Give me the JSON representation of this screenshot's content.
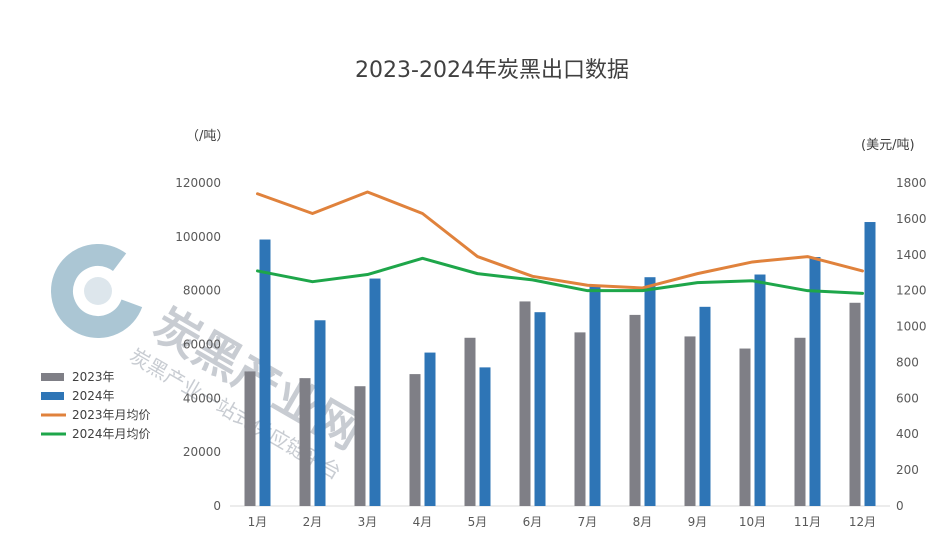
{
  "chart_data": {
    "type": "bar",
    "title": "2023-2024年炭黑出口数据",
    "categories": [
      "1月",
      "2月",
      "3月",
      "4月",
      "5月",
      "6月",
      "7月",
      "8月",
      "9月",
      "10月",
      "11月",
      "12月"
    ],
    "left_axis": {
      "label": "（/吨）",
      "min": 0,
      "max": 120000,
      "step": 20000,
      "ticks": [
        "0",
        "20000",
        "40000",
        "60000",
        "80000",
        "100000",
        "120000"
      ]
    },
    "right_axis": {
      "label": "(美元/吨)",
      "min": 0,
      "max": 1800,
      "step": 200,
      "ticks": [
        "0",
        "200",
        "400",
        "600",
        "800",
        "1000",
        "1200",
        "1400",
        "1600",
        "1800"
      ]
    },
    "series": [
      {
        "name": "2023年",
        "kind": "bar",
        "axis": "left",
        "color": "#7f7f86",
        "values": [
          50000,
          47500,
          44500,
          49000,
          62500,
          76000,
          64500,
          71000,
          63000,
          58500,
          62500,
          75500
        ]
      },
      {
        "name": "2024年",
        "kind": "bar",
        "axis": "left",
        "color": "#2e75b6",
        "values": [
          99000,
          69000,
          84500,
          57000,
          51500,
          72000,
          81500,
          85000,
          74000,
          86000,
          92500,
          105500
        ]
      },
      {
        "name": "2023年月均价",
        "kind": "line",
        "axis": "right",
        "color": "#e0823c",
        "values": [
          1740,
          1630,
          1750,
          1630,
          1390,
          1280,
          1230,
          1215,
          1295,
          1360,
          1390,
          1310
        ]
      },
      {
        "name": "2024年月均价",
        "kind": "line",
        "axis": "right",
        "color": "#1ea64a",
        "values": [
          1310,
          1250,
          1290,
          1380,
          1295,
          1260,
          1200,
          1200,
          1245,
          1255,
          1200,
          1185
        ]
      }
    ],
    "legend_position": "left",
    "grid": false
  },
  "watermark": {
    "logo_icon": "c-logo-icon",
    "title": "炭黑产业网",
    "subtitle": "炭黑产业一站式供应链平台"
  }
}
